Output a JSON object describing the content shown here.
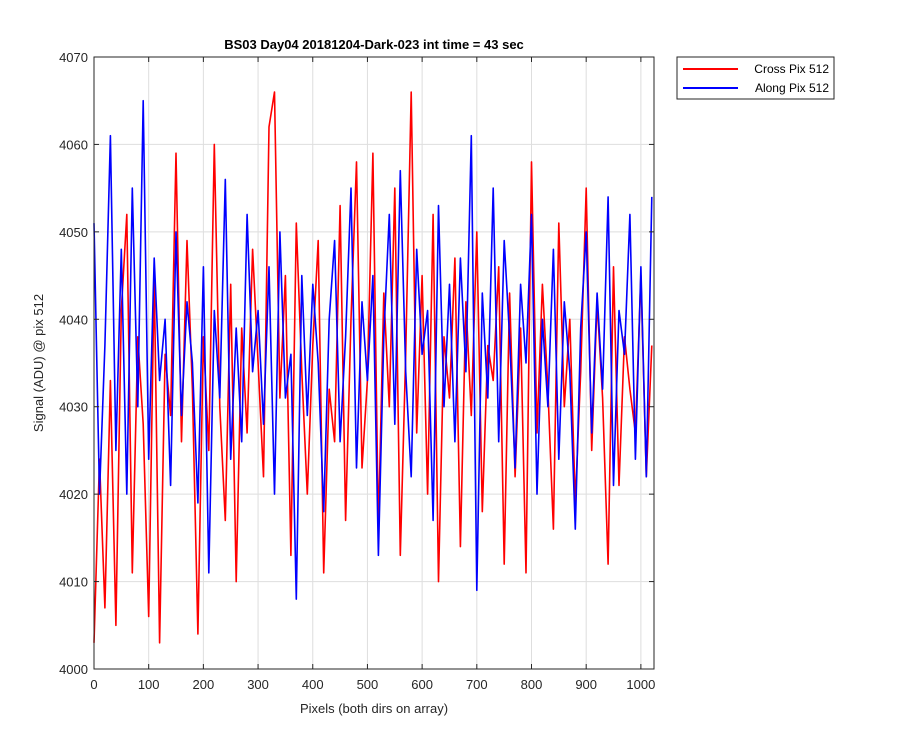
{
  "chart_data": {
    "type": "line",
    "title": "BS03 Day04 20181204-Dark-023 int time = 43 sec",
    "xlabel": "Pixels (both dirs on array)",
    "ylabel": "Signal (ADU) @ pix 512",
    "xlim": [
      0,
      1024
    ],
    "ylim": [
      4000,
      4070
    ],
    "xticks": [
      0,
      100,
      200,
      300,
      400,
      500,
      600,
      700,
      800,
      900,
      1000
    ],
    "yticks": [
      4000,
      4010,
      4020,
      4030,
      4040,
      4050,
      4060,
      4070
    ],
    "grid": true,
    "legend_position": "outside-top-right",
    "series": [
      {
        "name": "Cross Pix 512",
        "color": "#ff0000",
        "x": [
          0,
          10,
          20,
          30,
          40,
          50,
          60,
          70,
          80,
          90,
          100,
          110,
          120,
          130,
          140,
          150,
          160,
          170,
          180,
          190,
          200,
          210,
          220,
          230,
          240,
          250,
          260,
          270,
          280,
          290,
          300,
          310,
          320,
          330,
          340,
          350,
          360,
          370,
          380,
          390,
          400,
          410,
          420,
          430,
          440,
          450,
          460,
          470,
          480,
          490,
          500,
          510,
          520,
          530,
          540,
          550,
          560,
          570,
          580,
          590,
          600,
          610,
          620,
          630,
          640,
          650,
          660,
          670,
          680,
          690,
          700,
          710,
          720,
          730,
          740,
          750,
          760,
          770,
          780,
          790,
          800,
          810,
          820,
          830,
          840,
          850,
          860,
          870,
          880,
          890,
          900,
          910,
          920,
          930,
          940,
          950,
          960,
          970,
          980,
          990,
          1000,
          1010,
          1020
        ],
        "values": [
          4003,
          4024,
          4007,
          4033,
          4005,
          4041,
          4052,
          4011,
          4038,
          4028,
          4006,
          4045,
          4003,
          4036,
          4029,
          4059,
          4026,
          4049,
          4032,
          4004,
          4038,
          4025,
          4060,
          4030,
          4017,
          4044,
          4010,
          4039,
          4027,
          4048,
          4035,
          4022,
          4062,
          4066,
          4031,
          4045,
          4013,
          4051,
          4034,
          4020,
          4037,
          4049,
          4011,
          4032,
          4026,
          4053,
          4017,
          4040,
          4058,
          4023,
          4033,
          4059,
          4016,
          4043,
          4030,
          4055,
          4013,
          4036,
          4066,
          4027,
          4045,
          4020,
          4052,
          4010,
          4038,
          4031,
          4047,
          4014,
          4042,
          4029,
          4050,
          4018,
          4037,
          4033,
          4046,
          4012,
          4043,
          4022,
          4039,
          4011,
          4058,
          4027,
          4044,
          4032,
          4016,
          4051,
          4030,
          4040,
          4019,
          4034,
          4055,
          4025,
          4042,
          4031,
          4012,
          4046,
          4021,
          4038,
          4032,
          4027,
          4045,
          4022,
          4037
        ]
      },
      {
        "name": "Along Pix 512",
        "color": "#0000ff",
        "x": [
          0,
          10,
          20,
          30,
          40,
          50,
          60,
          70,
          80,
          90,
          100,
          110,
          120,
          130,
          140,
          150,
          160,
          170,
          180,
          190,
          200,
          210,
          220,
          230,
          240,
          250,
          260,
          270,
          280,
          290,
          300,
          310,
          320,
          330,
          340,
          350,
          360,
          370,
          380,
          390,
          400,
          410,
          420,
          430,
          440,
          450,
          460,
          470,
          480,
          490,
          500,
          510,
          520,
          530,
          540,
          550,
          560,
          570,
          580,
          590,
          600,
          610,
          620,
          630,
          640,
          650,
          660,
          670,
          680,
          690,
          700,
          710,
          720,
          730,
          740,
          750,
          760,
          770,
          780,
          790,
          800,
          810,
          820,
          830,
          840,
          850,
          860,
          870,
          880,
          890,
          900,
          910,
          920,
          930,
          940,
          950,
          960,
          970,
          980,
          990,
          1000,
          1010,
          1020
        ],
        "values": [
          4051,
          4020,
          4037,
          4061,
          4025,
          4048,
          4020,
          4055,
          4030,
          4065,
          4024,
          4047,
          4033,
          4040,
          4021,
          4050,
          4029,
          4042,
          4035,
          4019,
          4046,
          4011,
          4041,
          4031,
          4056,
          4024,
          4039,
          4026,
          4052,
          4034,
          4041,
          4028,
          4046,
          4020,
          4050,
          4031,
          4036,
          4008,
          4045,
          4029,
          4044,
          4035,
          4018,
          4040,
          4049,
          4026,
          4038,
          4055,
          4023,
          4042,
          4033,
          4045,
          4013,
          4038,
          4052,
          4028,
          4057,
          4034,
          4022,
          4048,
          4036,
          4041,
          4017,
          4053,
          4030,
          4044,
          4026,
          4047,
          4034,
          4061,
          4009,
          4043,
          4031,
          4055,
          4026,
          4049,
          4038,
          4023,
          4044,
          4035,
          4052,
          4020,
          4040,
          4030,
          4048,
          4024,
          4042,
          4034,
          4016,
          4039,
          4050,
          4027,
          4043,
          4032,
          4054,
          4021,
          4041,
          4036,
          4052,
          4024,
          4046,
          4022,
          4054
        ]
      }
    ]
  }
}
